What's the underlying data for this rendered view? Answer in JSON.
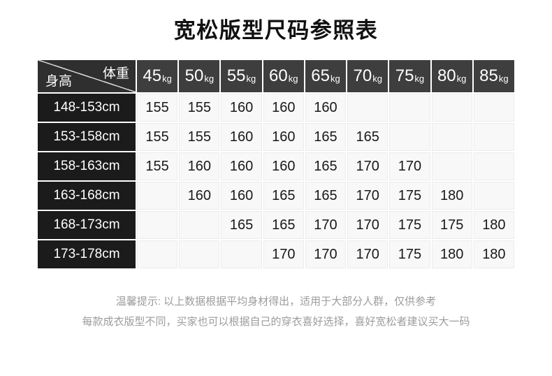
{
  "title": "宽松版型尺码参照表",
  "chart_data": {
    "type": "table",
    "title": "宽松版型尺码参照表",
    "corner": {
      "col_label": "体重",
      "row_label": "身高"
    },
    "weight_columns": [
      {
        "num": "45",
        "unit": "kg"
      },
      {
        "num": "50",
        "unit": "kg"
      },
      {
        "num": "55",
        "unit": "kg"
      },
      {
        "num": "60",
        "unit": "kg"
      },
      {
        "num": "65",
        "unit": "kg"
      },
      {
        "num": "70",
        "unit": "kg"
      },
      {
        "num": "75",
        "unit": "kg"
      },
      {
        "num": "80",
        "unit": "kg"
      },
      {
        "num": "85",
        "unit": "kg"
      }
    ],
    "height_rows": [
      {
        "height": "148-153cm",
        "sizes": [
          "155",
          "155",
          "160",
          "160",
          "160",
          "",
          "",
          "",
          ""
        ]
      },
      {
        "height": "153-158cm",
        "sizes": [
          "155",
          "155",
          "160",
          "160",
          "165",
          "165",
          "",
          "",
          ""
        ]
      },
      {
        "height": "158-163cm",
        "sizes": [
          "155",
          "160",
          "160",
          "160",
          "165",
          "170",
          "170",
          "",
          ""
        ]
      },
      {
        "height": "163-168cm",
        "sizes": [
          "",
          "160",
          "160",
          "165",
          "165",
          "170",
          "175",
          "180",
          ""
        ]
      },
      {
        "height": "168-173cm",
        "sizes": [
          "",
          "",
          "165",
          "165",
          "170",
          "170",
          "175",
          "175",
          "180"
        ]
      },
      {
        "height": "173-178cm",
        "sizes": [
          "",
          "",
          "",
          "170",
          "170",
          "170",
          "175",
          "180",
          "180"
        ]
      }
    ]
  },
  "footer": {
    "line1": "温馨提示: 以上数据根据平均身材得出，适用于大部分人群，仅供参考",
    "line2": "每款成衣版型不同，买家也可以根据自己的穿衣喜好选择，喜好宽松者建议买大一码"
  },
  "colors": {
    "title_text": "#111111",
    "column_header_bg": "#3e3e3e",
    "corner_bg": "#2f2f2f",
    "row_header_bg": "#1b1b1b",
    "cell_bg": "#f8f8f8",
    "cell_border": "#ececec",
    "footer_text": "#9c9c9c",
    "diagonal_line": "#d9d9d9"
  }
}
